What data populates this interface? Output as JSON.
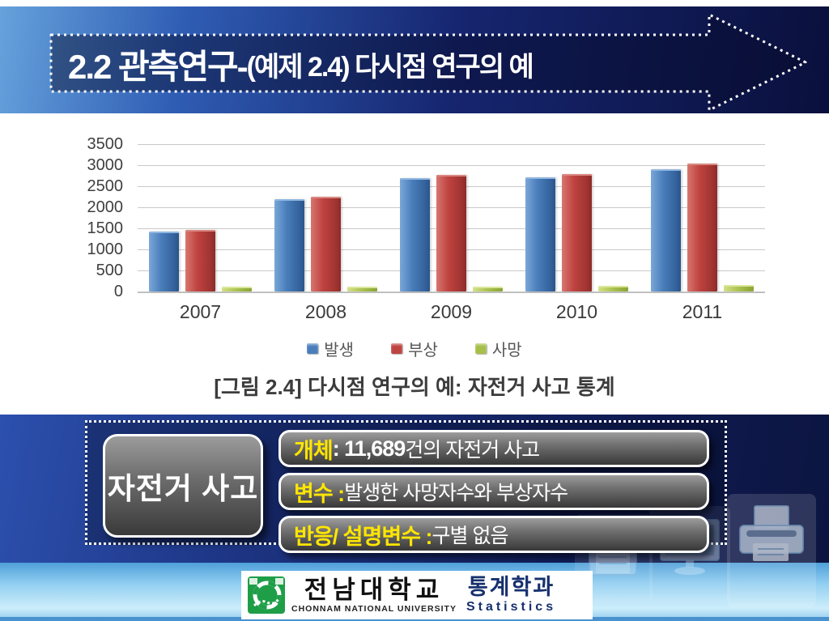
{
  "slide": {
    "title": "2.2 관측연구-(예제 2.4) 다시점 연구의 예",
    "title_main": "2.2 관측연구-",
    "title_sub": "(예제 2.4) 다시점 연구의 예",
    "caption": "[그림 2.4] 다시점 연구의 예: 자전거 사고 통계"
  },
  "chart_data": {
    "type": "bar",
    "title": "",
    "xlabel": "",
    "ylabel": "",
    "categories": [
      "2007",
      "2008",
      "2009",
      "2010",
      "2011"
    ],
    "series": [
      {
        "name": "발생",
        "color": "#4a7ebb",
        "values": [
          1380,
          2150,
          2650,
          2670,
          2870
        ]
      },
      {
        "name": "부상",
        "color": "#bf4340",
        "values": [
          1420,
          2220,
          2740,
          2750,
          3000
        ]
      },
      {
        "name": "사망",
        "color": "#a6bf4b",
        "values": [
          40,
          75,
          80,
          95,
          110
        ]
      }
    ],
    "ylim": [
      0,
      3500
    ],
    "ytick_step": 500,
    "yticks": [
      "3500",
      "3000",
      "2500",
      "2000",
      "1500",
      "1000",
      "500",
      "0"
    ],
    "grid": true,
    "legend_position": "bottom"
  },
  "info_panel": {
    "subject_label": "자전거 사고",
    "rows": [
      {
        "label": "개체",
        "strong": " : 11,689",
        "rest": "건의 자전거 사고"
      },
      {
        "label": "변수 :",
        "strong": "",
        "rest": " 발생한 사망자수와 부상자수"
      },
      {
        "label": "반응/ 설명변수 :",
        "strong": "",
        "rest": " 구별 없음"
      }
    ]
  },
  "footer": {
    "university_kr": "전남대학교",
    "university_en": "CHONNAM NATIONAL UNIVERSITY",
    "department_kr": "통계학과",
    "department_en": "Statistics"
  },
  "colors": {
    "accent_yellow": "#ffe600",
    "banner_navy": "#0a103c",
    "band_blue": "#1d3584",
    "series_blue": "#4a7ebb",
    "series_red": "#bf4340",
    "series_green": "#a6bf4b",
    "logo_green": "#1f9e48"
  },
  "icons": {
    "watermarks": [
      "floppy-disk-icon",
      "monitor-icon",
      "printer-icon"
    ],
    "logo": "chonnam-university-logo",
    "banner_arrow": "right-arrow-outline"
  }
}
